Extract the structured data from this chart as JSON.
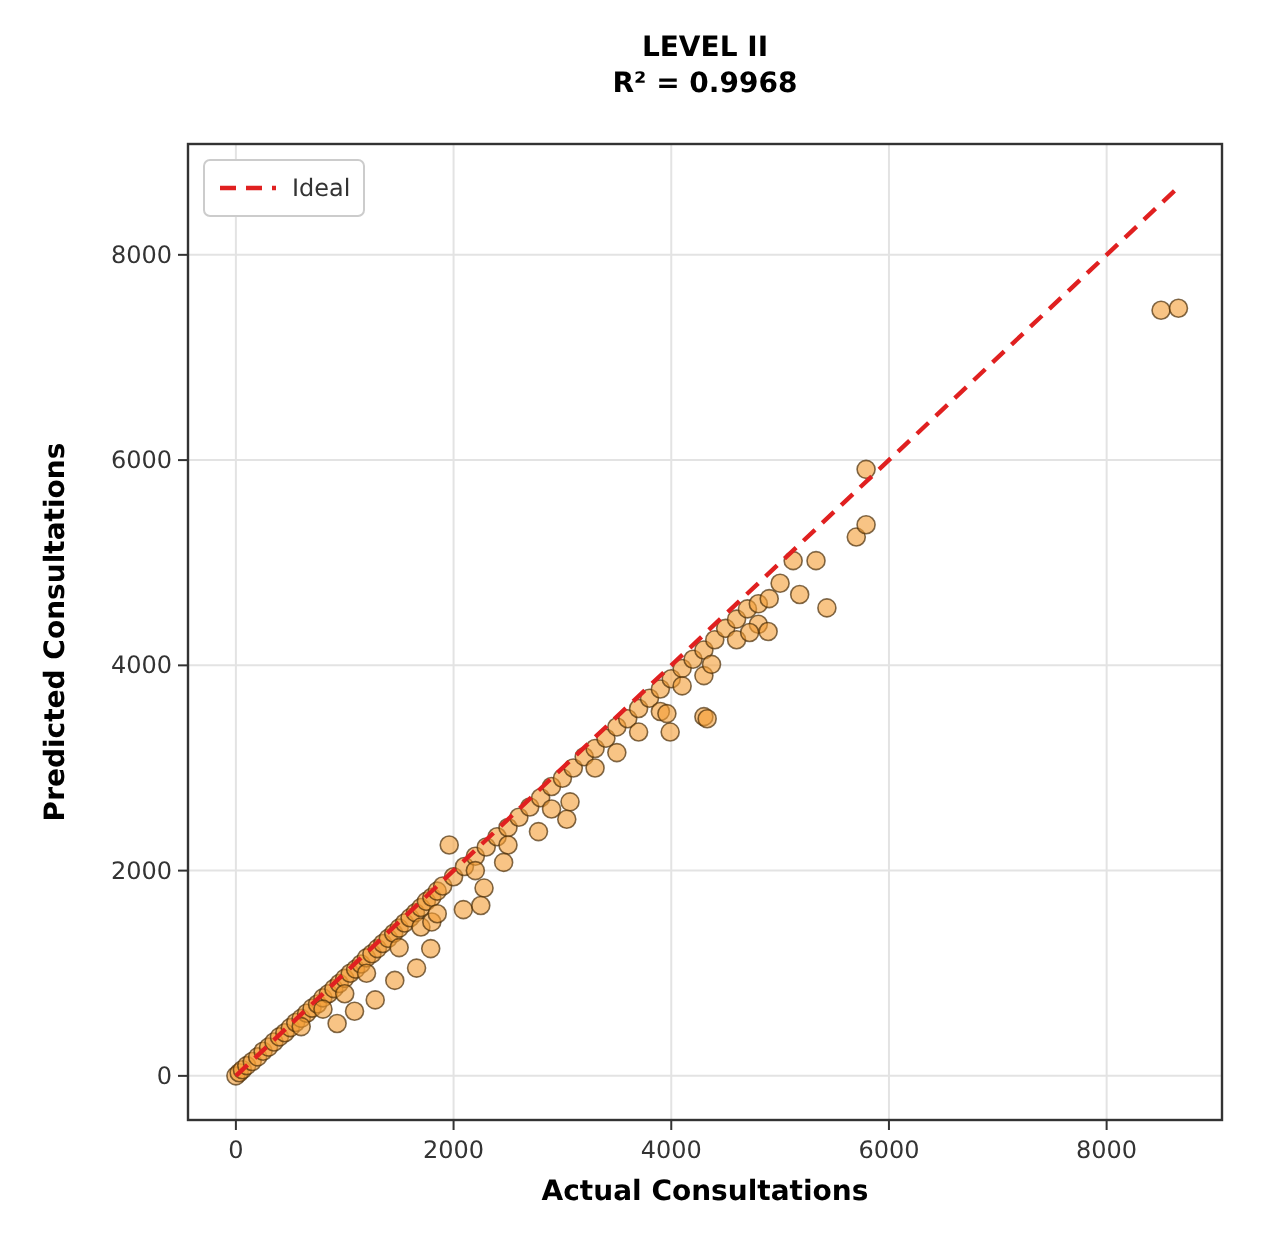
{
  "chart_data": {
    "type": "scatter",
    "title": "LEVEL II",
    "subtitle": "R² = 0.9968",
    "xlabel": "Actual Consultations",
    "ylabel": "Predicted Consultations",
    "xlim": [
      -440,
      9060
    ],
    "ylim": [
      -430,
      9080
    ],
    "xticks": [
      0,
      2000,
      4000,
      6000,
      8000
    ],
    "yticks": [
      0,
      2000,
      4000,
      6000,
      8000
    ],
    "grid": true,
    "legend": "top left",
    "series": [
      {
        "color": "#f39c33",
        "marker": "circle",
        "x": [
          0,
          30,
          60,
          100,
          150,
          200,
          250,
          300,
          350,
          400,
          450,
          500,
          550,
          600,
          650,
          700,
          750,
          800,
          850,
          900,
          950,
          1000,
          1050,
          1100,
          1150,
          1200,
          1250,
          1300,
          1350,
          1400,
          1450,
          1500,
          1550,
          1600,
          1650,
          1700,
          1750,
          1800,
          1850,
          1900,
          2000,
          2100,
          2200,
          2300,
          2400,
          2500,
          2600,
          2700,
          2800,
          2900,
          3000,
          3100,
          3200,
          3300,
          3400,
          3500,
          3600,
          3700,
          3800,
          3900,
          4000,
          4100,
          4200,
          4300,
          4400,
          4500,
          4600,
          4700,
          4800,
          4900,
          5000,
          600,
          800,
          1000,
          1200,
          1500,
          1700,
          1800,
          1850,
          2200,
          2500,
          2900,
          3300,
          3500,
          3700,
          3900,
          4100,
          4300,
          4600,
          4800,
          8500,
          8660,
          5790,
          5700,
          5790,
          5330,
          5120,
          5180,
          5430,
          4720,
          4890,
          4370,
          4300,
          4330,
          3990,
          3960,
          3070,
          3040,
          2780,
          2460,
          2280,
          2090,
          2250,
          1960,
          1790,
          1660,
          1460,
          1280,
          1090,
          930
        ],
        "values": [
          0,
          30,
          60,
          100,
          140,
          185,
          240,
          280,
          330,
          380,
          420,
          470,
          520,
          560,
          610,
          660,
          700,
          760,
          800,
          850,
          900,
          950,
          1000,
          1040,
          1090,
          1150,
          1190,
          1240,
          1290,
          1340,
          1390,
          1440,
          1490,
          1540,
          1590,
          1640,
          1700,
          1740,
          1800,
          1850,
          1940,
          2040,
          2140,
          2230,
          2330,
          2420,
          2520,
          2620,
          2710,
          2820,
          2900,
          3000,
          3110,
          3190,
          3290,
          3400,
          3480,
          3580,
          3680,
          3770,
          3870,
          3970,
          4060,
          4150,
          4250,
          4360,
          4450,
          4550,
          4600,
          4650,
          4800,
          480,
          650,
          800,
          1000,
          1250,
          1450,
          1500,
          1580,
          2000,
          2250,
          2600,
          3000,
          3150,
          3350,
          3550,
          3800,
          3900,
          4250,
          4400,
          7460,
          7480,
          5910,
          5250,
          5370,
          5020,
          5020,
          4690,
          4560,
          4320,
          4330,
          4010,
          3500,
          3480,
          3350,
          3530,
          2670,
          2500,
          2380,
          2080,
          1830,
          1620,
          1660,
          2250,
          1240,
          1050,
          930,
          740,
          630,
          510
        ]
      },
      {
        "type": "line",
        "name": "Ideal",
        "color": "#e02020",
        "line_style": "dashed",
        "marker": "none",
        "x": [
          0,
          8650
        ],
        "values": [
          0,
          8650
        ]
      }
    ]
  }
}
